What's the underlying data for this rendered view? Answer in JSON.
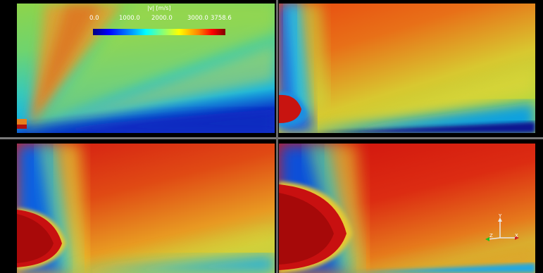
{
  "colorbar": {
    "title": "|v| [m/s]",
    "ticks": [
      "0.0",
      "1000.0",
      "2000.0",
      "3000.0",
      "3758.6"
    ],
    "colors": [
      "#00007f",
      "#0000ff",
      "#00a0ff",
      "#00ffff",
      "#7fff7f",
      "#ffff00",
      "#ff8000",
      "#ff0000",
      "#7f0000"
    ]
  },
  "axes_triad": {
    "y": "Y",
    "z": "Z",
    "x": "X"
  },
  "panels": [
    {
      "id": "top-left"
    },
    {
      "id": "top-right"
    },
    {
      "id": "bottom-left"
    },
    {
      "id": "bottom-right"
    }
  ]
}
